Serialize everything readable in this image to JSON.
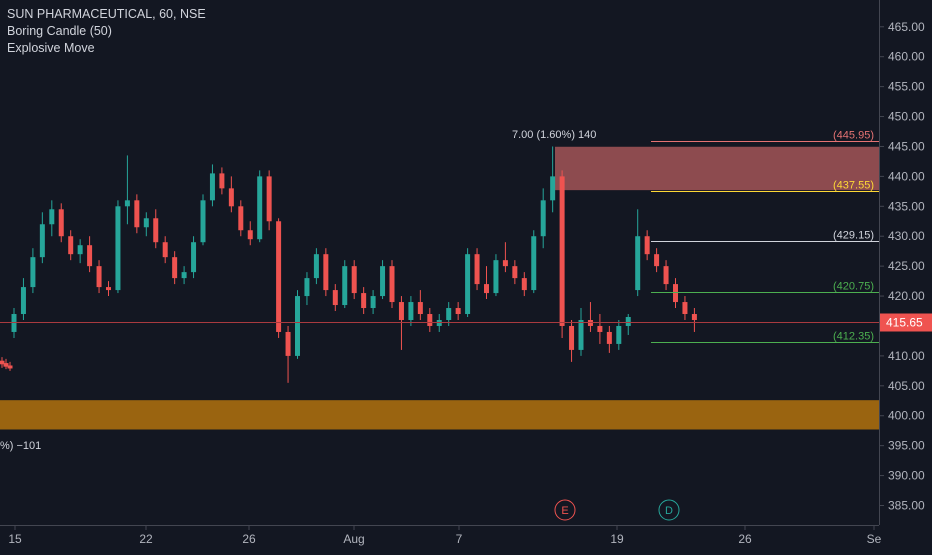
{
  "legend": {
    "symbol_line": "SUN PHARMACEUTICAL, 60, NSE",
    "indicator_1": "Boring Candle (50)",
    "indicator_2": "Explosive Move"
  },
  "colors": {
    "background": "#131722",
    "up": "#26a69a",
    "down": "#ef5350",
    "axis_text": "#b2b5be",
    "supply_zone": "#a35557",
    "demand_zone": "#9a6410",
    "current_price_line": "#a93a3f"
  },
  "chart_data": {
    "type": "candlestick",
    "ylim": [
      381,
      468
    ],
    "y_ticks": [
      "385.00",
      "390.00",
      "395.00",
      "400.00",
      "405.00",
      "410.00",
      "415.00",
      "420.00",
      "425.00",
      "430.00",
      "435.00",
      "440.00",
      "445.00",
      "450.00",
      "455.00",
      "460.00",
      "465.00"
    ],
    "x_ticks": [
      "15",
      "22",
      "26",
      "Aug",
      "7",
      "19",
      "26",
      "Se"
    ],
    "current_price": 415.65,
    "current_price_label": "415.65",
    "candles": [
      {
        "o": 409.2,
        "h": 409.8,
        "l": 408.0,
        "c": 408.6
      },
      {
        "o": 408.8,
        "h": 409.5,
        "l": 407.8,
        "c": 408.2
      },
      {
        "o": 408.4,
        "h": 409.0,
        "l": 407.5,
        "c": 407.9
      },
      {
        "o": 414.0,
        "h": 418.0,
        "l": 413.0,
        "c": 417.0
      },
      {
        "o": 417.0,
        "h": 423.0,
        "l": 416.0,
        "c": 421.5
      },
      {
        "o": 421.5,
        "h": 428.0,
        "l": 420.5,
        "c": 426.5
      },
      {
        "o": 426.5,
        "h": 434.0,
        "l": 425.5,
        "c": 432.0
      },
      {
        "o": 432.0,
        "h": 436.0,
        "l": 430.0,
        "c": 434.5
      },
      {
        "o": 434.5,
        "h": 435.5,
        "l": 429.0,
        "c": 430.0
      },
      {
        "o": 430.0,
        "h": 431.0,
        "l": 426.0,
        "c": 427.0
      },
      {
        "o": 427.0,
        "h": 429.5,
        "l": 425.5,
        "c": 428.5
      },
      {
        "o": 428.5,
        "h": 430.0,
        "l": 424.0,
        "c": 425.0
      },
      {
        "o": 425.0,
        "h": 426.0,
        "l": 420.5,
        "c": 421.5
      },
      {
        "o": 421.5,
        "h": 422.5,
        "l": 420.0,
        "c": 421.0
      },
      {
        "o": 421.0,
        "h": 436.0,
        "l": 420.5,
        "c": 435.0
      },
      {
        "o": 435.0,
        "h": 443.5,
        "l": 432.0,
        "c": 436.0
      },
      {
        "o": 436.0,
        "h": 437.0,
        "l": 430.5,
        "c": 431.5
      },
      {
        "o": 431.5,
        "h": 434.0,
        "l": 430.0,
        "c": 433.0
      },
      {
        "o": 433.0,
        "h": 434.5,
        "l": 428.0,
        "c": 429.0
      },
      {
        "o": 429.0,
        "h": 430.0,
        "l": 425.5,
        "c": 426.5
      },
      {
        "o": 426.5,
        "h": 427.5,
        "l": 422.0,
        "c": 423.0
      },
      {
        "o": 423.0,
        "h": 425.0,
        "l": 422.0,
        "c": 424.0
      },
      {
        "o": 424.0,
        "h": 430.0,
        "l": 423.0,
        "c": 429.0
      },
      {
        "o": 429.0,
        "h": 437.0,
        "l": 428.5,
        "c": 436.0
      },
      {
        "o": 436.0,
        "h": 442.0,
        "l": 435.0,
        "c": 440.5
      },
      {
        "o": 440.5,
        "h": 441.5,
        "l": 437.0,
        "c": 438.0
      },
      {
        "o": 438.0,
        "h": 440.0,
        "l": 434.0,
        "c": 435.0
      },
      {
        "o": 435.0,
        "h": 436.0,
        "l": 430.0,
        "c": 431.0
      },
      {
        "o": 431.0,
        "h": 432.5,
        "l": 428.5,
        "c": 429.5
      },
      {
        "o": 429.5,
        "h": 441.0,
        "l": 429.0,
        "c": 440.0
      },
      {
        "o": 440.0,
        "h": 441.0,
        "l": 431.0,
        "c": 432.5
      },
      {
        "o": 432.5,
        "h": 433.0,
        "l": 413.0,
        "c": 414.0
      },
      {
        "o": 414.0,
        "h": 415.0,
        "l": 405.5,
        "c": 410.0
      },
      {
        "o": 410.0,
        "h": 421.0,
        "l": 409.5,
        "c": 420.0
      },
      {
        "o": 420.0,
        "h": 424.0,
        "l": 418.5,
        "c": 423.0
      },
      {
        "o": 423.0,
        "h": 428.0,
        "l": 422.0,
        "c": 427.0
      },
      {
        "o": 427.0,
        "h": 428.0,
        "l": 420.0,
        "c": 421.0
      },
      {
        "o": 421.0,
        "h": 422.0,
        "l": 417.5,
        "c": 418.5
      },
      {
        "o": 418.5,
        "h": 426.0,
        "l": 418.0,
        "c": 425.0
      },
      {
        "o": 425.0,
        "h": 426.0,
        "l": 419.5,
        "c": 420.5
      },
      {
        "o": 420.5,
        "h": 421.5,
        "l": 417.0,
        "c": 418.0
      },
      {
        "o": 418.0,
        "h": 421.0,
        "l": 417.0,
        "c": 420.0
      },
      {
        "o": 420.0,
        "h": 426.0,
        "l": 419.5,
        "c": 425.0
      },
      {
        "o": 425.0,
        "h": 426.0,
        "l": 418.0,
        "c": 419.0
      },
      {
        "o": 419.0,
        "h": 420.0,
        "l": 411.0,
        "c": 416.0
      },
      {
        "o": 416.0,
        "h": 420.0,
        "l": 415.0,
        "c": 419.0
      },
      {
        "o": 419.0,
        "h": 421.0,
        "l": 416.0,
        "c": 417.0
      },
      {
        "o": 417.0,
        "h": 418.0,
        "l": 414.0,
        "c": 415.0
      },
      {
        "o": 415.0,
        "h": 417.0,
        "l": 414.0,
        "c": 416.0
      },
      {
        "o": 416.0,
        "h": 419.0,
        "l": 415.0,
        "c": 418.0
      },
      {
        "o": 418.0,
        "h": 419.0,
        "l": 416.0,
        "c": 417.0
      },
      {
        "o": 417.0,
        "h": 428.0,
        "l": 416.5,
        "c": 427.0
      },
      {
        "o": 427.0,
        "h": 428.0,
        "l": 421.0,
        "c": 422.0
      },
      {
        "o": 422.0,
        "h": 425.0,
        "l": 419.5,
        "c": 420.5
      },
      {
        "o": 420.5,
        "h": 427.0,
        "l": 420.0,
        "c": 426.0
      },
      {
        "o": 426.0,
        "h": 429.0,
        "l": 424.0,
        "c": 425.0
      },
      {
        "o": 425.0,
        "h": 426.0,
        "l": 422.0,
        "c": 423.0
      },
      {
        "o": 423.0,
        "h": 424.0,
        "l": 420.0,
        "c": 421.0
      },
      {
        "o": 421.0,
        "h": 431.0,
        "l": 420.5,
        "c": 430.0
      },
      {
        "o": 430.0,
        "h": 438.0,
        "l": 428.0,
        "c": 436.0
      },
      {
        "o": 436.0,
        "h": 445.0,
        "l": 434.0,
        "c": 440.0
      },
      {
        "o": 440.0,
        "h": 441.0,
        "l": 413.0,
        "c": 415.0
      },
      {
        "o": 415.0,
        "h": 416.0,
        "l": 409.0,
        "c": 411.0
      },
      {
        "o": 411.0,
        "h": 418.0,
        "l": 410.0,
        "c": 416.0
      },
      {
        "o": 416.0,
        "h": 419.0,
        "l": 414.0,
        "c": 415.0
      },
      {
        "o": 415.0,
        "h": 417.0,
        "l": 412.0,
        "c": 414.0
      },
      {
        "o": 414.0,
        "h": 415.0,
        "l": 410.5,
        "c": 412.0
      },
      {
        "o": 412.0,
        "h": 416.0,
        "l": 411.0,
        "c": 415.0
      },
      {
        "o": 415.0,
        "h": 417.0,
        "l": 413.5,
        "c": 416.5
      },
      {
        "o": 421.0,
        "h": 434.5,
        "l": 420.0,
        "c": 430.0
      },
      {
        "o": 430.0,
        "h": 431.0,
        "l": 426.0,
        "c": 427.0
      },
      {
        "o": 427.0,
        "h": 428.0,
        "l": 424.0,
        "c": 425.0
      },
      {
        "o": 425.0,
        "h": 426.0,
        "l": 421.0,
        "c": 422.0
      },
      {
        "o": 422.0,
        "h": 423.0,
        "l": 418.0,
        "c": 419.0
      },
      {
        "o": 419.0,
        "h": 420.0,
        "l": 416.0,
        "c": 417.0
      },
      {
        "o": 417.0,
        "h": 418.0,
        "l": 414.0,
        "c": 416.0
      }
    ],
    "supply_zone": {
      "top": 444.95,
      "bottom": 437.7
    },
    "demand_zone": {
      "top": 402.6,
      "bottom": 397.7
    },
    "levels": [
      {
        "value": 445.95,
        "label": "(445.95)",
        "color": "#e57373"
      },
      {
        "value": 437.55,
        "label": "(437.55)",
        "color": "#fdd835"
      },
      {
        "value": 429.15,
        "label": "(429.15)",
        "color": "#d1d4dc"
      },
      {
        "value": 420.75,
        "label": "(420.75)",
        "color": "#4caf50"
      },
      {
        "value": 412.35,
        "label": "(412.35)",
        "color": "#4caf50"
      }
    ],
    "annotations": [
      {
        "text": "7.00 (1.60%) 140"
      },
      {
        "text": "%) −101"
      }
    ],
    "events": [
      {
        "label": "E",
        "color": "#ef5350"
      },
      {
        "label": "D",
        "color": "#26a69a"
      }
    ]
  }
}
